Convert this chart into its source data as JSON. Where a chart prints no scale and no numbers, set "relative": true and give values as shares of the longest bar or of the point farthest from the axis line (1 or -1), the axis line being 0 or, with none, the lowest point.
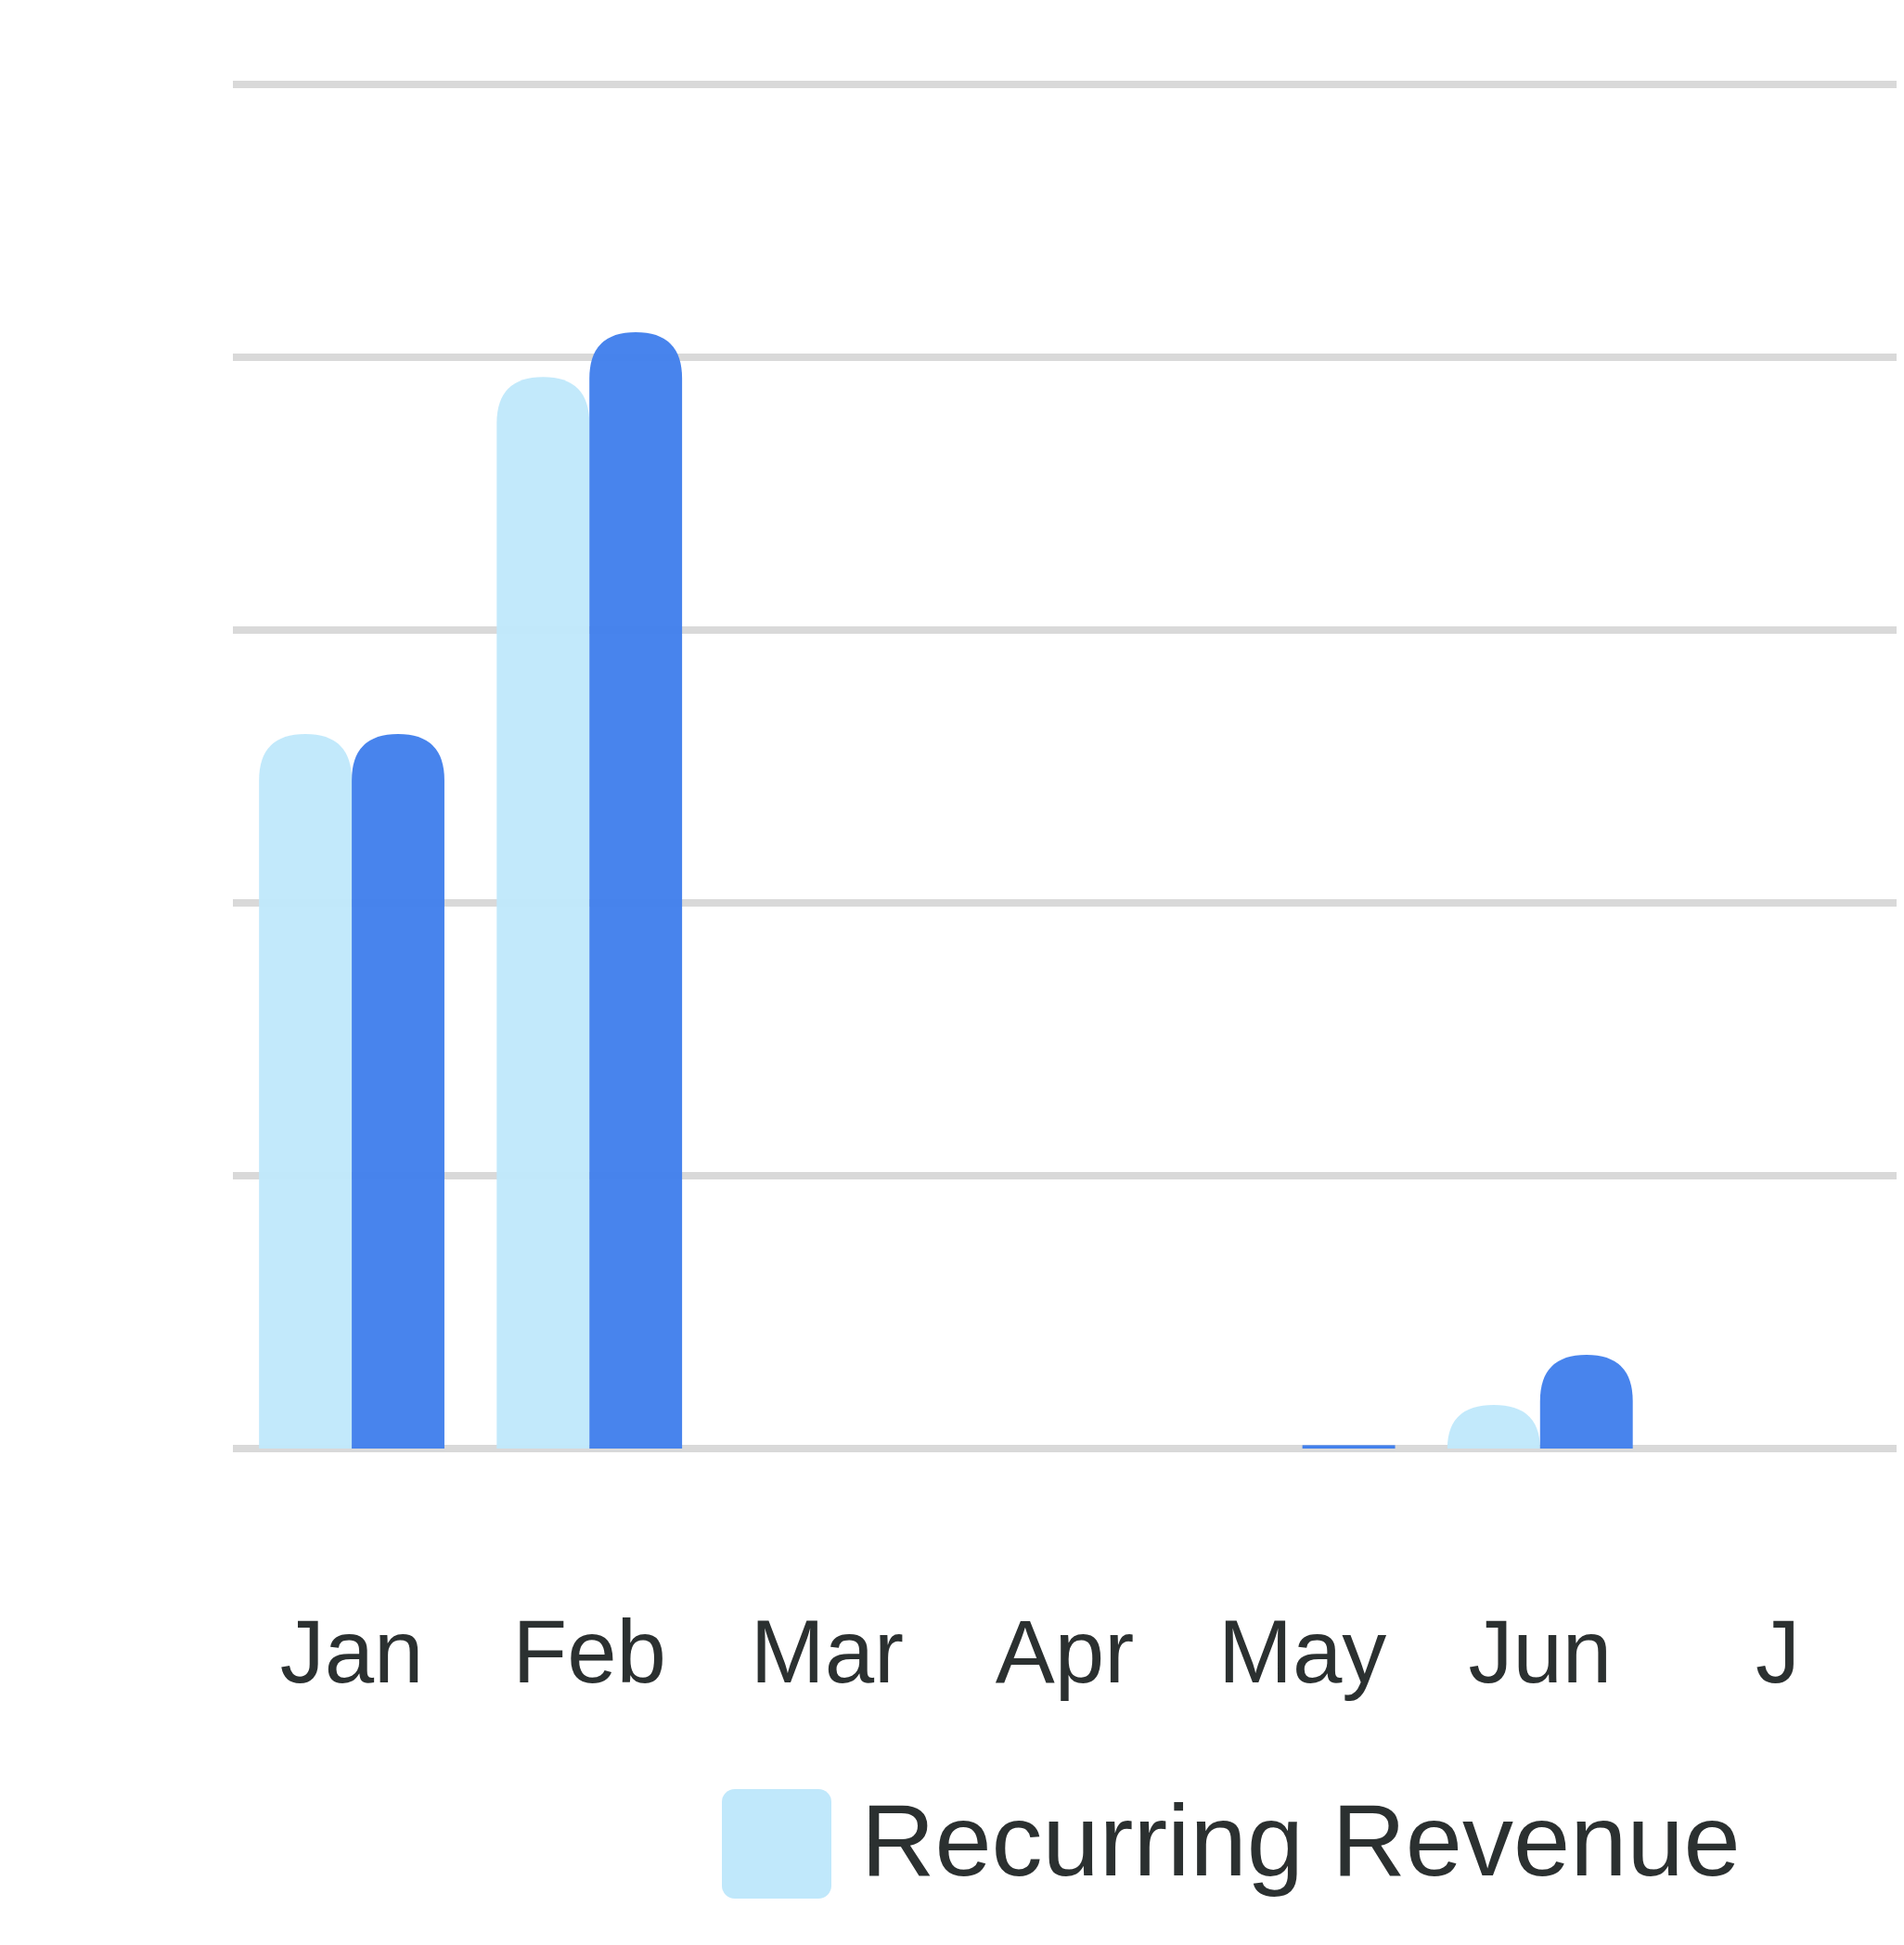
{
  "chart_data": {
    "type": "bar",
    "relative": true,
    "categories": [
      "Jan",
      "Feb",
      "Mar",
      "Apr",
      "May",
      "Jun",
      "J"
    ],
    "series": [
      {
        "name": "Recurring Revenue",
        "color": "#c0e8fb",
        "values": [
          0.64,
          0.96,
          0,
          0,
          0,
          0.039,
          null
        ]
      },
      {
        "color": "#4280ec",
        "values": [
          0.64,
          1,
          0,
          0,
          0.003,
          0.084,
          null
        ]
      }
    ],
    "grid": "y",
    "legend": "bottom"
  }
}
